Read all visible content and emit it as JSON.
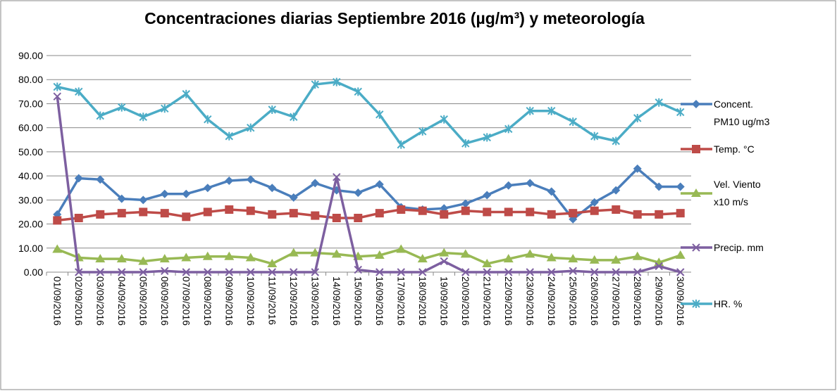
{
  "chart_data": {
    "type": "line",
    "title": "Concentraciones diarias Septiembre 2016 (µg/m³) y meteorología",
    "categories": [
      "01/09/2016",
      "02/09/2016",
      "03/09/2016",
      "04/09/2016",
      "05/09/2016",
      "06/09/2016",
      "07/09/2016",
      "08/09/2016",
      "09/09/2016",
      "10/09/2016",
      "11/09/2016",
      "12/09/2016",
      "13/09/2016",
      "14/09/2016",
      "15/09/2016",
      "16/09/2016",
      "17/09/2016",
      "18/09/2016",
      "19/09/2016",
      "20/09/2016",
      "21/09/2016",
      "22/09/2016",
      "23/09/2016",
      "24/09/2016",
      "25/09/2016",
      "26/09/2016",
      "27/09/2016",
      "28/09/2016",
      "29/09/2016",
      "30/09/2016"
    ],
    "series": [
      {
        "name": "Concent. PM10 ug/m3",
        "color": "#4a7ebb",
        "marker": "diamond",
        "values": [
          24,
          39,
          38.5,
          30.5,
          30,
          32.5,
          32.5,
          35,
          38,
          38.5,
          35,
          31,
          37,
          34,
          33,
          36.5,
          27,
          26,
          26.5,
          28.5,
          32,
          36,
          37,
          33.5,
          22,
          29,
          34,
          43,
          35.5,
          35.5
        ]
      },
      {
        "name": "Temp. °C",
        "color": "#be4b48",
        "marker": "square",
        "values": [
          21.5,
          22.5,
          24,
          24.5,
          25,
          24.5,
          23,
          25,
          26,
          25.5,
          24,
          24.5,
          23.5,
          22.5,
          22.5,
          24.5,
          26,
          25.5,
          24,
          25.5,
          25,
          25,
          25,
          24,
          24.5,
          25.5,
          26,
          24,
          24,
          24.5
        ]
      },
      {
        "name": "Vel. Viento x10 m/s",
        "color": "#98b954",
        "marker": "triangle",
        "values": [
          9.5,
          6,
          5.5,
          5.5,
          4.5,
          5.5,
          6,
          6.5,
          6.5,
          6,
          3.5,
          8,
          8,
          7.5,
          6.5,
          7,
          9.5,
          5.5,
          8,
          7.5,
          3.5,
          5.5,
          7.5,
          6,
          5.5,
          5,
          5,
          6.5,
          4,
          7
        ]
      },
      {
        "name": "Precip. mm",
        "color": "#7d5fa0",
        "marker": "x",
        "values": [
          73,
          0,
          0,
          0,
          0,
          0.5,
          0,
          0,
          0,
          0,
          0,
          0,
          0,
          39.5,
          1,
          0,
          0,
          0,
          4.5,
          0,
          0,
          0,
          0,
          0,
          0.5,
          0,
          0,
          0,
          2.5,
          0
        ]
      },
      {
        "name": "HR. %",
        "color": "#4bacc6",
        "marker": "star",
        "values": [
          77,
          75,
          65,
          68.5,
          64.5,
          68,
          74,
          63.5,
          56.5,
          60,
          67.5,
          64.5,
          78,
          79,
          75,
          65.5,
          53,
          58.5,
          63.5,
          53.5,
          56,
          59.5,
          67,
          67,
          62.5,
          56.5,
          54.5,
          64,
          70.5,
          66.5
        ]
      }
    ],
    "ylim": [
      0,
      90
    ],
    "yticks": [
      {
        "value": 0,
        "label": "0.00"
      },
      {
        "value": 10,
        "label": "10.00"
      },
      {
        "value": 20,
        "label": "20.00"
      },
      {
        "value": 30,
        "label": "30.00"
      },
      {
        "value": 40,
        "label": "40.00"
      },
      {
        "value": 50,
        "label": "50.00"
      },
      {
        "value": 60,
        "label": "60.00"
      },
      {
        "value": 70,
        "label": "70.00"
      },
      {
        "value": 80,
        "label": "80.00"
      },
      {
        "value": 90,
        "label": "90.00"
      }
    ],
    "grid": true,
    "legend": "right"
  }
}
